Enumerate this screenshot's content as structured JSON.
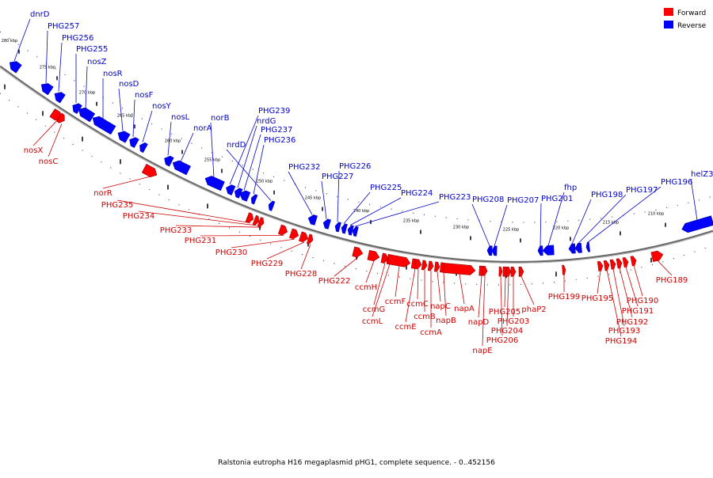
{
  "legend": {
    "items": [
      {
        "label": "Forward",
        "color": "#ff0000"
      },
      {
        "label": "Reverse",
        "color": "#0000ff"
      }
    ]
  },
  "caption": "Ralstonia eutropha H16 megaplasmid pHG1, complete sequence. - 0..452156",
  "colors": {
    "forward": "#ff0000",
    "reverse": "#0000ff",
    "forward_label": "#cc0000",
    "reverse_label": "#0000cc",
    "backbone": "#666666"
  },
  "ticks": [
    "280 kbp",
    "275 kbp",
    "270 kbp",
    "265 kbp",
    "260 kbp",
    "255 kbp",
    "250 kbp",
    "245 kbp",
    "240 kbp",
    "235 kbp",
    "230 kbp",
    "225 kbp",
    "220 kbp",
    "215 kbp",
    "210 kbp"
  ],
  "reverse_genes": [
    "dnrD",
    "PHG257",
    "PHG256",
    "PHG255",
    "nosZ",
    "nosR",
    "nosD",
    "nosF",
    "nosY",
    "nosL",
    "norA",
    "norB",
    "PHG239",
    "nrdG",
    "PHG237",
    "PHG236",
    "nrdD",
    "PHG232",
    "PHG227",
    "PHG226",
    "PHG225",
    "PHG224",
    "PHG223",
    "PHG208",
    "PHG207",
    "PHG201",
    "fhp",
    "PHG198",
    "PHG197",
    "PHG196",
    "helZ3"
  ],
  "forward_genes": [
    "nosX",
    "nosC",
    "norR",
    "PHG235",
    "PHG234",
    "PHG233",
    "PHG231",
    "PHG230",
    "PHG229",
    "PHG228",
    "PHG222",
    "ccmH",
    "ccmG",
    "ccmL",
    "ccmF",
    "ccmE",
    "ccmC",
    "ccmB",
    "ccmA",
    "napC",
    "napB",
    "napA",
    "napD",
    "napE",
    "PHG206",
    "PHG205",
    "PHG204",
    "PHG203",
    "phaP2",
    "PHG199",
    "PHG195",
    "PHG194",
    "PHG193",
    "PHG192",
    "PHG191",
    "PHG190",
    "PHG189"
  ]
}
